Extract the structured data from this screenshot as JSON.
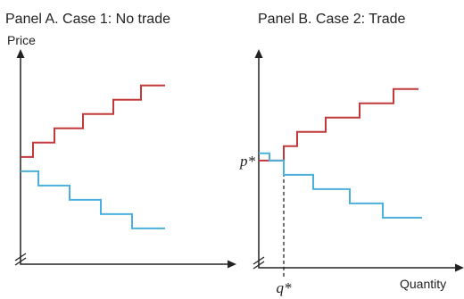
{
  "chart_data": [
    {
      "type": "line",
      "title": "Panel A. Case 1: No trade",
      "ylabel": "Price",
      "xlabel": "",
      "colors": {
        "supply": "#c0393b",
        "demand": "#4cb0dc",
        "axis": "#222222"
      },
      "series": [
        {
          "steps": [
            [
              0,
              45
            ],
            [
              14,
              45
            ],
            [
              14,
              51
            ],
            [
              38,
              51
            ],
            [
              38,
              57
            ],
            [
              70,
              57
            ],
            [
              70,
              63
            ],
            [
              104,
              63
            ],
            [
              104,
              69
            ],
            [
              135,
              69
            ],
            [
              135,
              75
            ],
            [
              162,
              75
            ]
          ]
        },
        {
          "steps": [
            [
              0,
              39
            ],
            [
              20,
              39
            ],
            [
              20,
              33
            ],
            [
              55,
              33
            ],
            [
              55,
              27
            ],
            [
              90,
              27
            ],
            [
              90,
              21
            ],
            [
              125,
              21
            ],
            [
              125,
              15
            ],
            [
              162,
              15
            ]
          ]
        }
      ]
    },
    {
      "type": "line",
      "title": "Panel B. Case 2: Trade",
      "ylabel": "",
      "xlabel": "Quantity",
      "colors": {
        "supply": "#c0393b",
        "demand": "#4cb0dc",
        "axis": "#222222"
      },
      "series": [
        {
          "steps": [
            [
              0,
              45
            ],
            [
              28,
              45
            ],
            [
              28,
              51
            ],
            [
              43,
              51
            ],
            [
              43,
              57
            ],
            [
              75,
              57
            ],
            [
              75,
              63
            ],
            [
              113,
              63
            ],
            [
              113,
              69
            ],
            [
              151,
              69
            ],
            [
              151,
              75
            ],
            [
              179,
              75
            ]
          ]
        },
        {
          "steps": [
            [
              0,
              48
            ],
            [
              12,
              48
            ],
            [
              12,
              45
            ],
            [
              28,
              45
            ],
            [
              28,
              39
            ],
            [
              61,
              39
            ],
            [
              61,
              33
            ],
            [
              102,
              33
            ],
            [
              102,
              27
            ],
            [
              139,
              27
            ],
            [
              139,
              21
            ],
            [
              183,
              21
            ]
          ]
        }
      ],
      "annotations": {
        "p_label": "p*",
        "q_label": "q*",
        "p_value": 45,
        "q_value": 28
      }
    }
  ]
}
